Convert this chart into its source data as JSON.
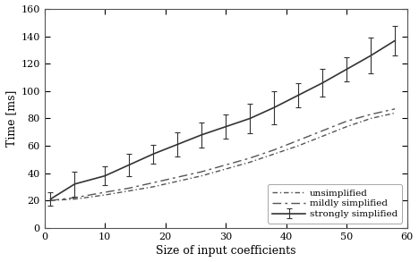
{
  "title": "",
  "xlabel": "Size of input coefficients",
  "ylabel": "Time [ms]",
  "xlim": [
    0,
    60
  ],
  "ylim": [
    0,
    160
  ],
  "xticks": [
    0,
    10,
    20,
    30,
    40,
    50,
    60
  ],
  "yticks": [
    0,
    20,
    40,
    60,
    80,
    100,
    120,
    140,
    160
  ],
  "x_data": [
    1,
    5,
    10,
    14,
    18,
    22,
    26,
    30,
    34,
    38,
    42,
    46,
    50,
    54,
    58
  ],
  "unsimplified_y": [
    20,
    21,
    24,
    27,
    30,
    34,
    38,
    43,
    48,
    54,
    60,
    67,
    74,
    80,
    84
  ],
  "mildly_y": [
    20,
    22,
    26,
    29,
    33,
    37,
    41,
    46,
    51,
    57,
    64,
    71,
    78,
    83,
    87
  ],
  "strongly_y": [
    21,
    32,
    38,
    46,
    54,
    61,
    68,
    74,
    80,
    88,
    97,
    106,
    116,
    126,
    137
  ],
  "strongly_yerr": [
    5,
    9,
    7,
    8,
    7,
    9,
    9,
    9,
    11,
    12,
    9,
    10,
    9,
    13,
    11
  ],
  "line_color": "#555555",
  "strong_color": "#333333",
  "background_color": "#ffffff",
  "legend_labels": [
    "unsimplified",
    "mildly simplified",
    "strongly simplified"
  ]
}
